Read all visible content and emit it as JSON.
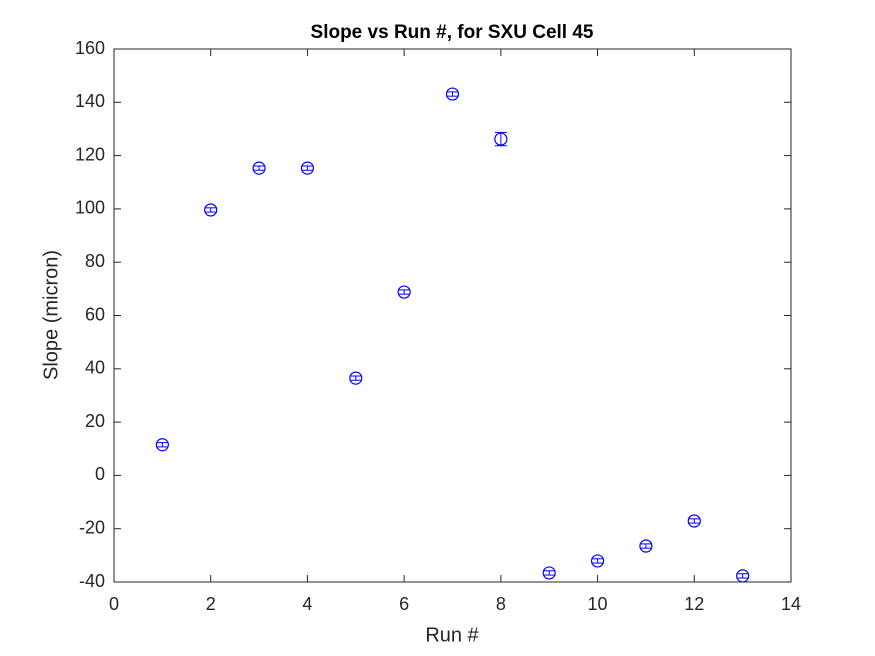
{
  "chart_data": {
    "type": "errorbar",
    "title": "Slope vs Run #, for SXU Cell 45",
    "xlabel": "Run #",
    "ylabel": "Slope (micron)",
    "x": [
      1,
      2,
      3,
      4,
      5,
      6,
      7,
      8,
      9,
      10,
      11,
      12,
      13
    ],
    "series": [
      {
        "color": "#0000ff",
        "values": [
          11.5,
          99.6,
          115.3,
          115.3,
          36.5,
          68.8,
          143.1,
          126.2,
          -36.6,
          -32.1,
          -26.5,
          -17.1,
          -37.7
        ],
        "errors": [
          0.8,
          0.8,
          0.8,
          0.8,
          0.8,
          0.8,
          0.8,
          2.5,
          0.8,
          0.8,
          0.8,
          0.8,
          0.8
        ]
      }
    ],
    "xlim": [
      0,
      14
    ],
    "xticks": [
      0,
      2,
      4,
      6,
      8,
      10,
      12,
      14
    ],
    "ylim": [
      -40,
      160
    ],
    "yticks": [
      -40,
      -20,
      0,
      20,
      40,
      60,
      80,
      100,
      120,
      140,
      160
    ],
    "grid": false
  }
}
